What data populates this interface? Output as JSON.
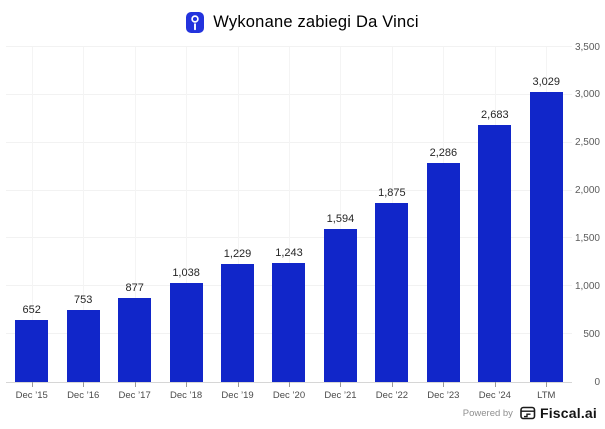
{
  "header": {
    "title": "Wykonane zabiegi Da Vinci",
    "icon": "intuitive-surgical-logo-icon",
    "icon_color": "#2333dd"
  },
  "chart_data": {
    "type": "bar",
    "title": "Wykonane zabiegi Da Vinci",
    "categories": [
      "Dec ’15",
      "Dec ’16",
      "Dec ’17",
      "Dec ’18",
      "Dec ’19",
      "Dec ’20",
      "Dec ’21",
      "Dec ’22",
      "Dec ’23",
      "Dec ’24",
      "LTM"
    ],
    "values": [
      652,
      753,
      877,
      1038,
      1229,
      1243,
      1594,
      1875,
      2286,
      2683,
      3029
    ],
    "value_labels": [
      "652",
      "753",
      "877",
      "1,038",
      "1,229",
      "1,243",
      "1,594",
      "1,875",
      "2,286",
      "2,683",
      "3,029"
    ],
    "xlabel": "",
    "ylabel": "",
    "ylim": [
      0,
      3500
    ],
    "y_ticks": [
      0,
      500,
      1000,
      1500,
      2000,
      2500,
      3000,
      3500
    ],
    "y_tick_labels": [
      "0",
      "500",
      "1,000",
      "1,500",
      "2,000",
      "2,500",
      "3,000",
      "3,500"
    ],
    "y_axis_side": "right",
    "grid": true,
    "legend_position": "none",
    "bar_color": "#1126c9"
  },
  "footer": {
    "powered_by_label": "Powered by",
    "brand_name": "Fiscal.ai"
  }
}
